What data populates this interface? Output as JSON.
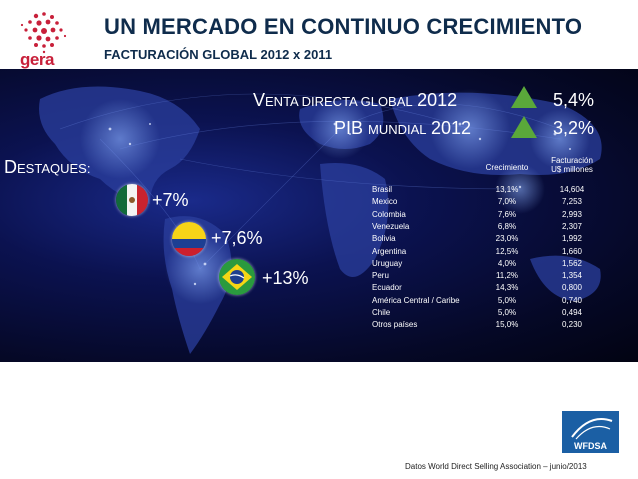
{
  "header": {
    "logo_text": "gera",
    "title": "UN MERCADO EN CONTINUO CRECIMIENTO",
    "subtitle": "FACTURACIÓN GLOBAL 2012 x 2011"
  },
  "headline": {
    "venta_lead": "V",
    "venta_rest": "ENTA DIRECTA GLOBAL",
    "venta_year": "2012",
    "venta_pct": "5,4%",
    "pib_lead": "PIB ",
    "pib_rest": "MUNDIAL",
    "pib_year": "2012",
    "pib_pct": "3,2%",
    "arrow_color": "#5aa83a"
  },
  "destaques": {
    "lead": "D",
    "rest": "ESTAQUES:",
    "flags": [
      {
        "country": "Mexico",
        "value": "+7%"
      },
      {
        "country": "Colombia",
        "value": "+7,6%"
      },
      {
        "country": "Brasil",
        "value": "+13%"
      }
    ]
  },
  "table": {
    "col_growth": "Crecimiento",
    "col_rev_line1": "Facturación",
    "col_rev_line2": "U$ millones",
    "rows": [
      {
        "country": "Brasil",
        "growth": "13,1%",
        "revenue": "14,604"
      },
      {
        "country": "Mexico",
        "growth": "7,0%",
        "revenue": "7,253"
      },
      {
        "country": "Colombia",
        "growth": "7,6%",
        "revenue": "2,993"
      },
      {
        "country": "Venezuela",
        "growth": "6,8%",
        "revenue": "2,307"
      },
      {
        "country": "Bolivia",
        "growth": "23,0%",
        "revenue": "1,992"
      },
      {
        "country": "Argentina",
        "growth": "12,5%",
        "revenue": "1,660"
      },
      {
        "country": "Uruguay",
        "growth": "4,0%",
        "revenue": "1,562"
      },
      {
        "country": "Peru",
        "growth": "11,2%",
        "revenue": "1,354"
      },
      {
        "country": "Ecuador",
        "growth": "14,3%",
        "revenue": "0,800"
      },
      {
        "country": "América Central / Caribe",
        "growth": "5,0%",
        "revenue": "0,740"
      },
      {
        "country": "Chile",
        "growth": "5,0%",
        "revenue": "0,494"
      },
      {
        "country": "Otros países",
        "growth": "15,0%",
        "revenue": "0,230"
      }
    ]
  },
  "footer": {
    "wfdsa_logo_text": "WFDSA",
    "source": "Datos World Direct Selling Association – junio/2013"
  }
}
